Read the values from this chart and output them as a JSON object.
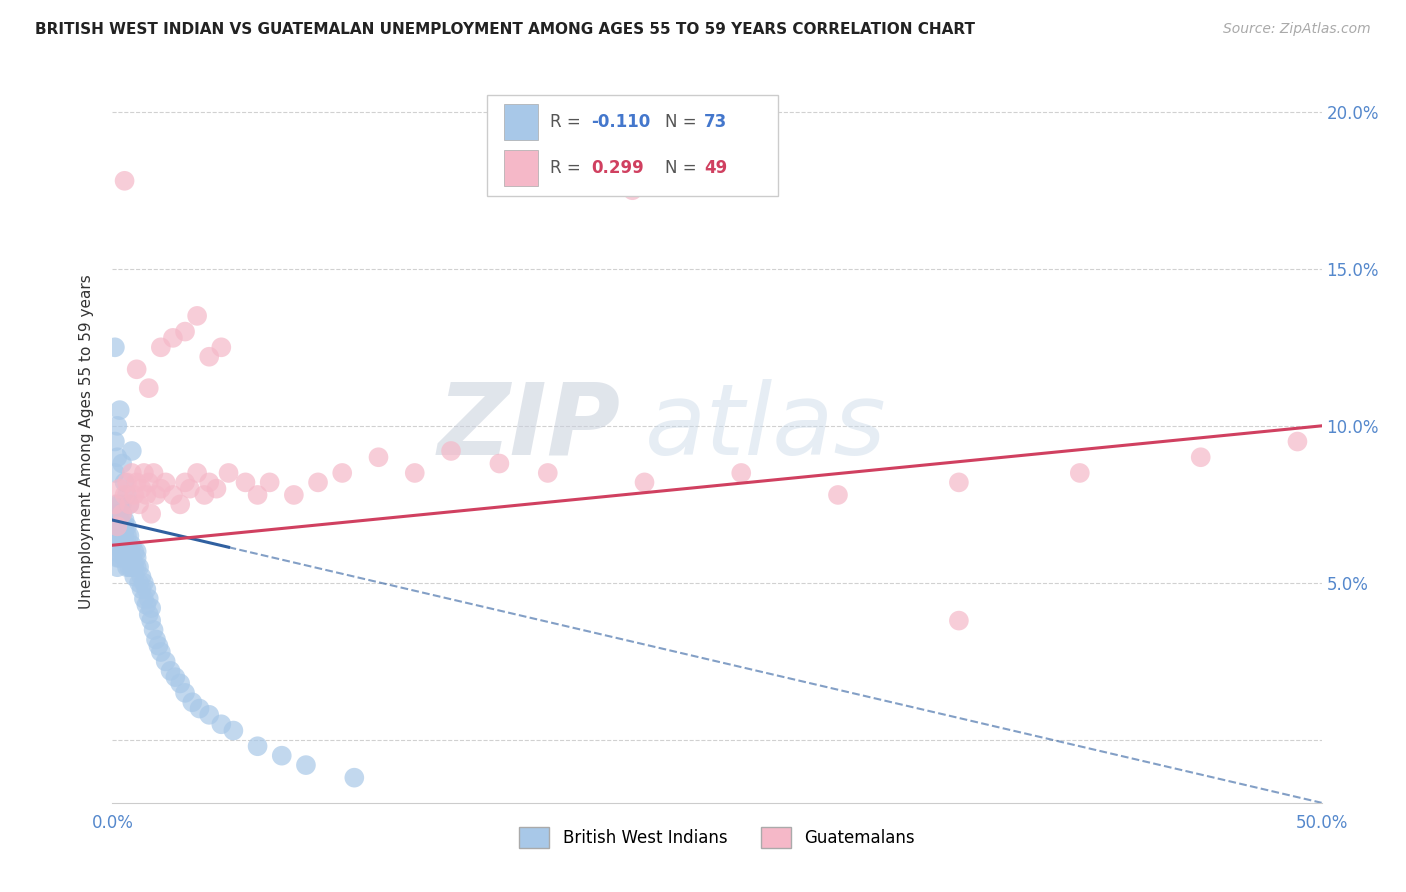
{
  "title": "BRITISH WEST INDIAN VS GUATEMALAN UNEMPLOYMENT AMONG AGES 55 TO 59 YEARS CORRELATION CHART",
  "source": "Source: ZipAtlas.com",
  "ylabel": "Unemployment Among Ages 55 to 59 years",
  "xlim": [
    0.0,
    0.5
  ],
  "ylim": [
    -0.02,
    0.21
  ],
  "R_blue": -0.11,
  "N_blue": 73,
  "R_pink": 0.299,
  "N_pink": 49,
  "blue_color": "#a8c8e8",
  "pink_color": "#f5b8c8",
  "blue_line_color": "#3060a0",
  "pink_line_color": "#d04060",
  "legend_blue_label": "British West Indians",
  "legend_pink_label": "Guatemalans",
  "watermark_zip": "ZIP",
  "watermark_atlas": "atlas",
  "blue_x": [
    0.001,
    0.001,
    0.001,
    0.002,
    0.002,
    0.002,
    0.002,
    0.002,
    0.002,
    0.003,
    0.003,
    0.003,
    0.003,
    0.003,
    0.003,
    0.003,
    0.004,
    0.004,
    0.004,
    0.004,
    0.004,
    0.005,
    0.005,
    0.005,
    0.005,
    0.005,
    0.006,
    0.006,
    0.006,
    0.006,
    0.007,
    0.007,
    0.007,
    0.007,
    0.008,
    0.008,
    0.008,
    0.009,
    0.009,
    0.009,
    0.01,
    0.01,
    0.01,
    0.011,
    0.011,
    0.012,
    0.012,
    0.013,
    0.013,
    0.014,
    0.014,
    0.015,
    0.015,
    0.016,
    0.016,
    0.017,
    0.018,
    0.019,
    0.02,
    0.022,
    0.024,
    0.026,
    0.028,
    0.03,
    0.033,
    0.036,
    0.04,
    0.045,
    0.05,
    0.06,
    0.07,
    0.08,
    0.1
  ],
  "blue_y": [
    0.065,
    0.07,
    0.06,
    0.072,
    0.068,
    0.065,
    0.075,
    0.058,
    0.055,
    0.07,
    0.065,
    0.068,
    0.062,
    0.058,
    0.072,
    0.075,
    0.068,
    0.072,
    0.065,
    0.06,
    0.075,
    0.065,
    0.07,
    0.068,
    0.062,
    0.058,
    0.065,
    0.068,
    0.06,
    0.055,
    0.065,
    0.06,
    0.058,
    0.055,
    0.062,
    0.058,
    0.055,
    0.06,
    0.055,
    0.052,
    0.06,
    0.055,
    0.058,
    0.055,
    0.05,
    0.052,
    0.048,
    0.05,
    0.045,
    0.048,
    0.043,
    0.045,
    0.04,
    0.042,
    0.038,
    0.035,
    0.032,
    0.03,
    0.028,
    0.025,
    0.022,
    0.02,
    0.018,
    0.015,
    0.012,
    0.01,
    0.008,
    0.005,
    0.003,
    -0.002,
    -0.005,
    -0.008,
    -0.012
  ],
  "blue_y_high": [
    0.085,
    0.095,
    0.09,
    0.1,
    0.105,
    0.088,
    0.082,
    0.078,
    0.075,
    0.092
  ],
  "blue_x_high": [
    0.001,
    0.001,
    0.002,
    0.002,
    0.003,
    0.004,
    0.005,
    0.006,
    0.007,
    0.008
  ],
  "blue_x_outlier": [
    0.001
  ],
  "blue_y_outlier": [
    0.125
  ],
  "pink_x": [
    0.001,
    0.002,
    0.003,
    0.004,
    0.005,
    0.006,
    0.007,
    0.008,
    0.009,
    0.01,
    0.011,
    0.012,
    0.013,
    0.014,
    0.015,
    0.016,
    0.017,
    0.018,
    0.02,
    0.022,
    0.025,
    0.028,
    0.03,
    0.032,
    0.035,
    0.038,
    0.04,
    0.043,
    0.048,
    0.055,
    0.06,
    0.065,
    0.075,
    0.085,
    0.095,
    0.11,
    0.125,
    0.14,
    0.16,
    0.18,
    0.22,
    0.26,
    0.3,
    0.35,
    0.4,
    0.45,
    0.49,
    0.005,
    0.35
  ],
  "pink_y": [
    0.075,
    0.068,
    0.08,
    0.072,
    0.078,
    0.082,
    0.075,
    0.085,
    0.078,
    0.082,
    0.075,
    0.08,
    0.085,
    0.078,
    0.082,
    0.072,
    0.085,
    0.078,
    0.08,
    0.082,
    0.078,
    0.075,
    0.082,
    0.08,
    0.085,
    0.078,
    0.082,
    0.08,
    0.085,
    0.082,
    0.078,
    0.082,
    0.078,
    0.082,
    0.085,
    0.09,
    0.085,
    0.092,
    0.088,
    0.085,
    0.082,
    0.085,
    0.078,
    0.082,
    0.085,
    0.09,
    0.095,
    0.178,
    0.038
  ],
  "pink_x_high": [
    0.025,
    0.03,
    0.035,
    0.04,
    0.045,
    0.01,
    0.015,
    0.02
  ],
  "pink_y_high": [
    0.128,
    0.13,
    0.135,
    0.122,
    0.125,
    0.118,
    0.112,
    0.125
  ],
  "pink_x_outlier": [
    0.215
  ],
  "pink_y_outlier": [
    0.175
  ]
}
